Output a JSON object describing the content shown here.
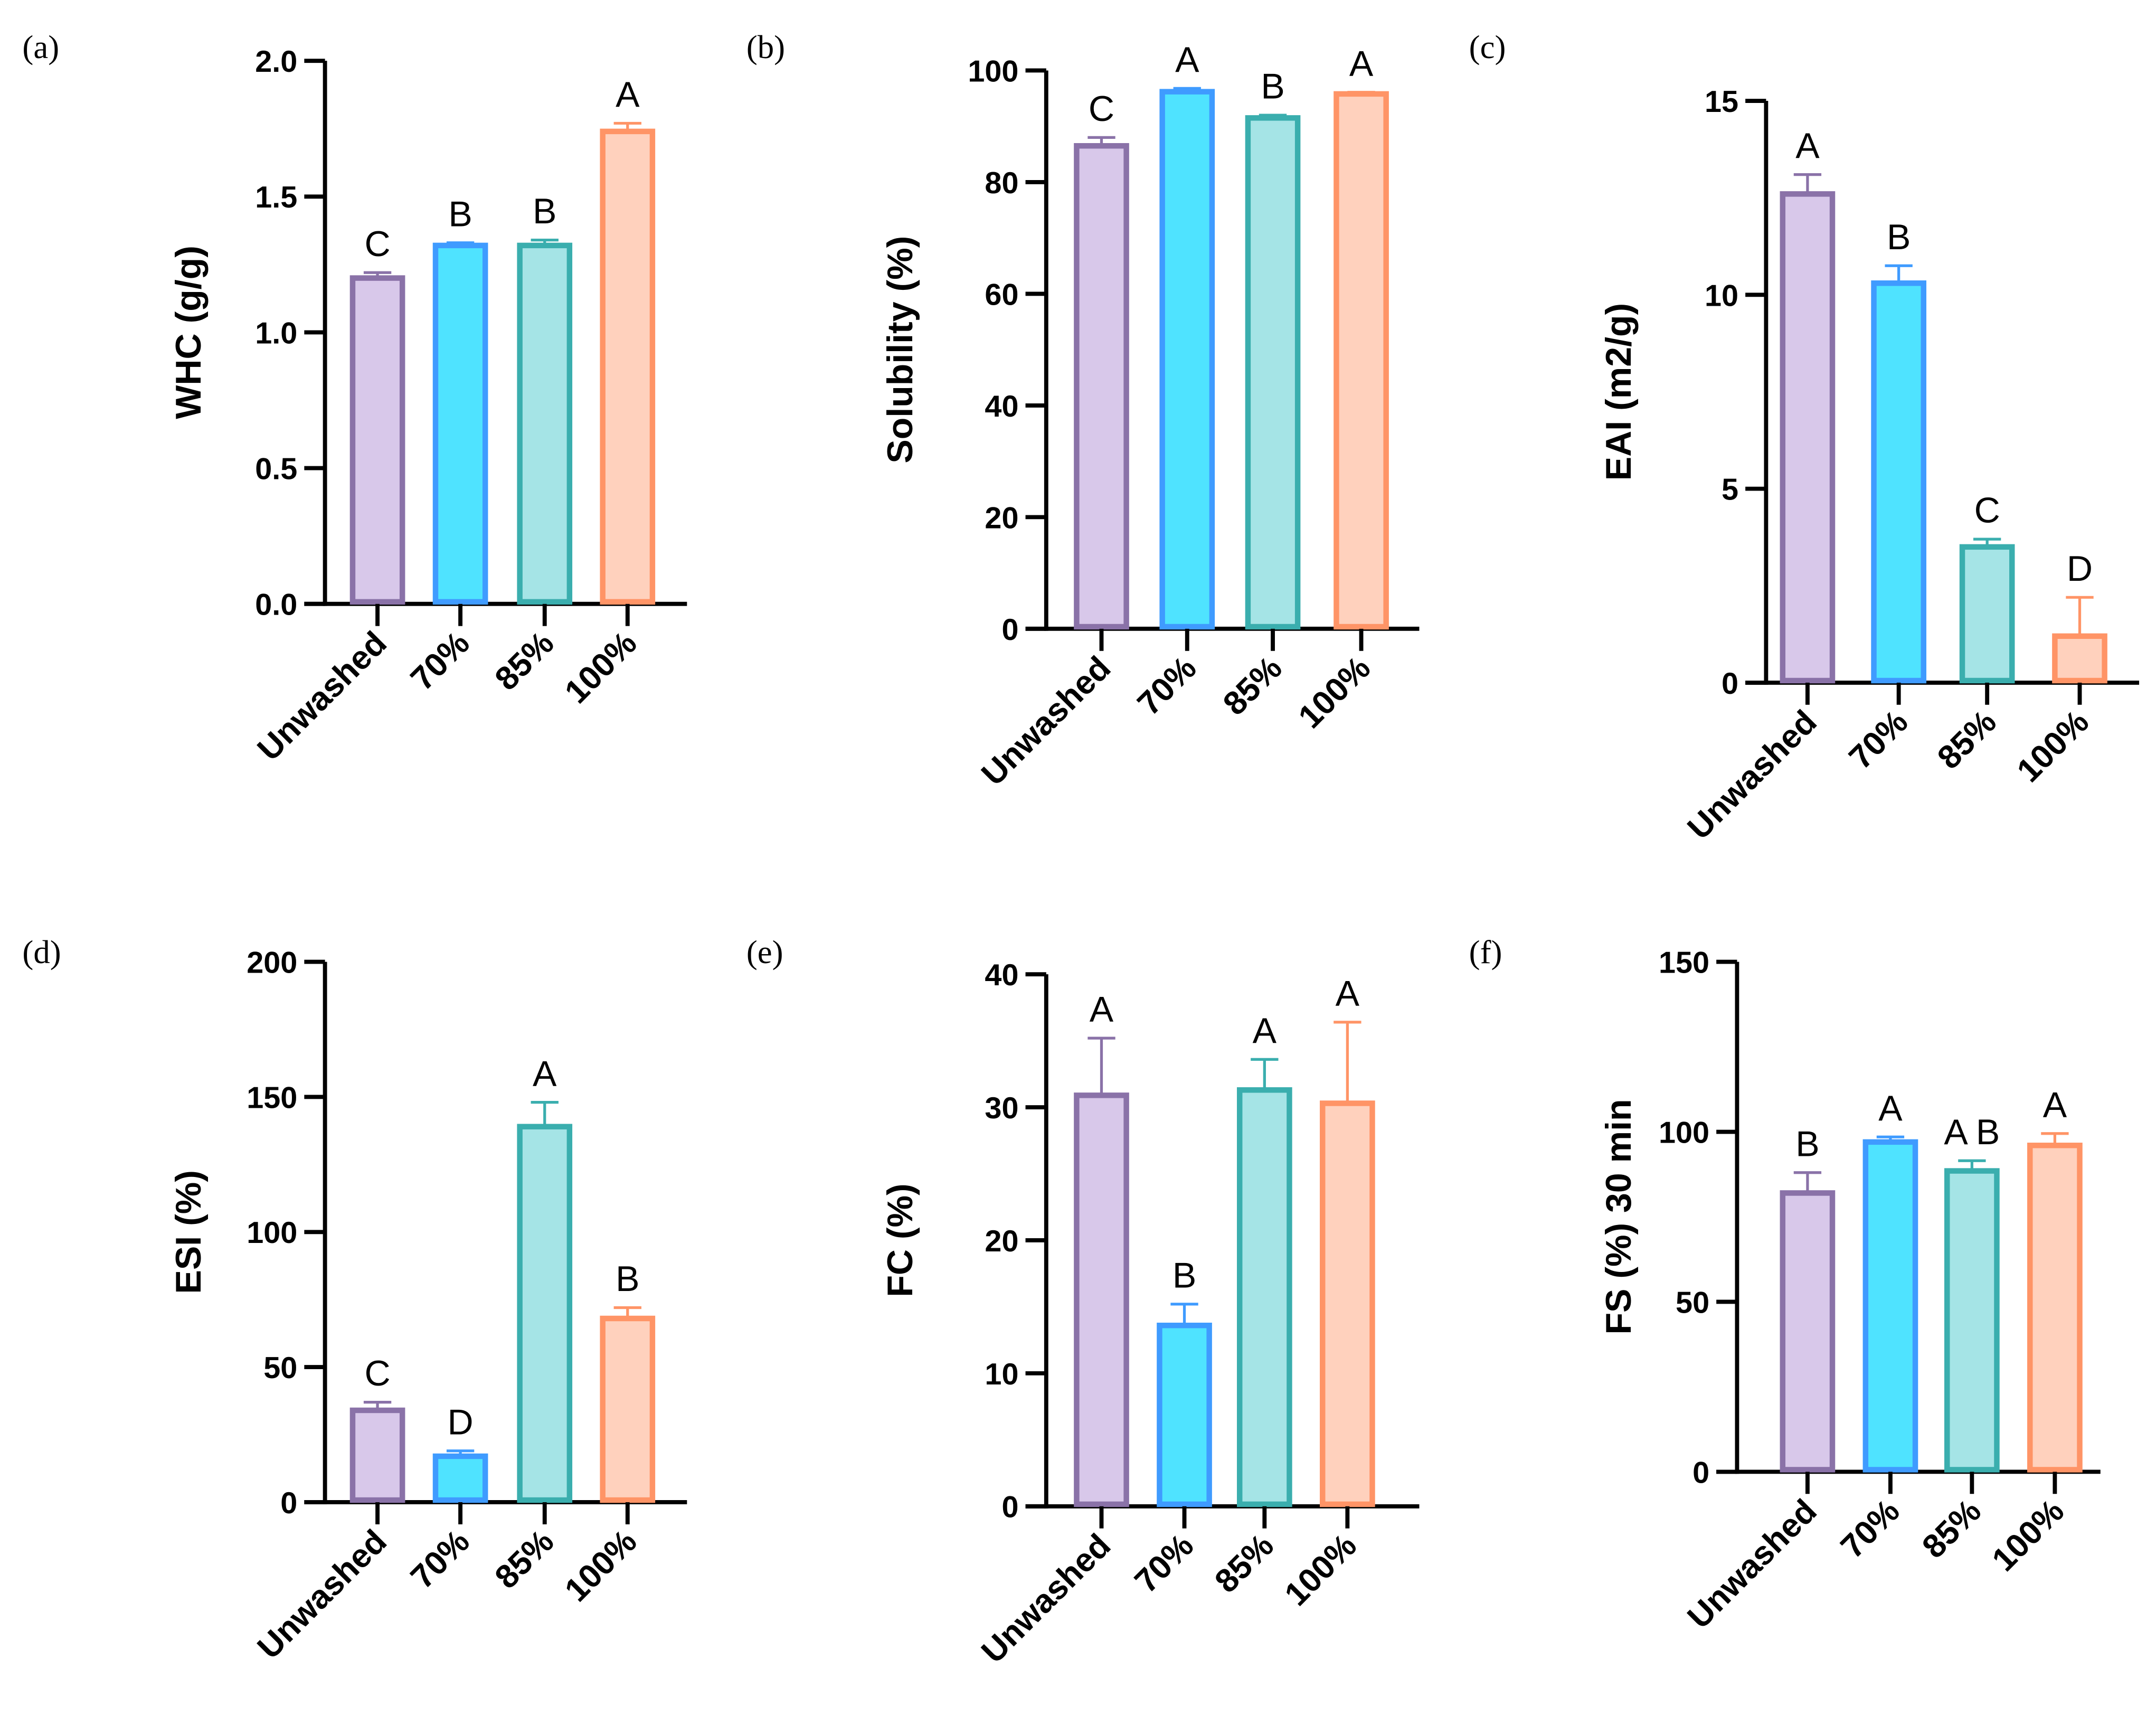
{
  "chart_data": [
    {
      "panel": "(a)",
      "type": "bar",
      "ylabel": "WHC (g/g)",
      "ylim": [
        0,
        2.0
      ],
      "yticks": [
        "0.0",
        "0.5",
        "1.0",
        "1.5",
        "2.0"
      ],
      "ytick_values": [
        0,
        0.5,
        1,
        1.5,
        2
      ],
      "categories": [
        "Unwashed",
        "70%",
        "85%",
        "100%"
      ],
      "values": [
        1.2,
        1.32,
        1.32,
        1.74
      ],
      "errors": [
        0.02,
        0.01,
        0.02,
        0.03
      ],
      "letters": [
        "C",
        "B",
        "B",
        "A"
      ]
    },
    {
      "panel": "(b)",
      "type": "bar",
      "ylabel": "Solubility (%)",
      "ylim": [
        0,
        100
      ],
      "yticks": [
        "0",
        "20",
        "40",
        "60",
        "80",
        "100"
      ],
      "ytick_values": [
        0,
        20,
        40,
        60,
        80,
        100
      ],
      "categories": [
        "Unwashed",
        "70%",
        "85%",
        "100%"
      ],
      "values": [
        86.5,
        96.2,
        91.5,
        95.8
      ],
      "errors": [
        1.5,
        0.6,
        0.5,
        0.3
      ],
      "letters": [
        "C",
        "A",
        "B",
        "A"
      ]
    },
    {
      "panel": "(c)",
      "type": "bar",
      "ylabel": "EAI (m2/g)",
      "ylim": [
        0,
        15
      ],
      "yticks": [
        "0",
        "5",
        "10",
        "15"
      ],
      "ytick_values": [
        0,
        5,
        10,
        15
      ],
      "categories": [
        "Unwashed",
        "70%",
        "85%",
        "100%"
      ],
      "values": [
        12.6,
        10.3,
        3.5,
        1.2
      ],
      "errors": [
        0.5,
        0.45,
        0.2,
        1.0
      ],
      "letters": [
        "A",
        "B",
        "C",
        "D"
      ]
    },
    {
      "panel": "(d)",
      "type": "bar",
      "ylabel": "ESI (%)",
      "ylim": [
        0,
        200
      ],
      "yticks": [
        "0",
        "50",
        "100",
        "150",
        "200"
      ],
      "ytick_values": [
        0,
        50,
        100,
        150,
        200
      ],
      "categories": [
        "Unwashed",
        "70%",
        "85%",
        "100%"
      ],
      "values": [
        34,
        17,
        139,
        68
      ],
      "errors": [
        3,
        2,
        9,
        4
      ],
      "letters": [
        "C",
        "D",
        "A",
        "B"
      ]
    },
    {
      "panel": "(e)",
      "type": "bar",
      "ylabel": "FC (%)",
      "ylim": [
        0,
        40
      ],
      "yticks": [
        "0",
        "10",
        "20",
        "30",
        "40"
      ],
      "ytick_values": [
        0,
        10,
        20,
        30,
        40
      ],
      "categories": [
        "Unwashed",
        "70%",
        "85%",
        "100%"
      ],
      "values": [
        30.9,
        13.6,
        31.3,
        30.3
      ],
      "errors": [
        4.3,
        1.6,
        2.3,
        6.1
      ],
      "letters": [
        "A",
        "B",
        "A",
        "A"
      ]
    },
    {
      "panel": "(f)",
      "type": "bar",
      "ylabel": "FS (%) 30 min",
      "ylim": [
        0,
        150
      ],
      "yticks": [
        "0",
        "50",
        "100",
        "150"
      ],
      "ytick_values": [
        0,
        50,
        100,
        150
      ],
      "categories": [
        "Unwashed",
        "70%",
        "85%",
        "100%"
      ],
      "values": [
        82,
        97,
        88.5,
        96
      ],
      "errors": [
        6,
        1.5,
        3,
        3.5
      ],
      "letters": [
        "B",
        "A",
        "A B",
        "A"
      ]
    }
  ],
  "colors": {
    "fills": [
      "#d8c8ea",
      "#4fe3ff",
      "#a5e4e6",
      "#ffd1bd"
    ],
    "strokes": [
      "#8a72a8",
      "#3f9bff",
      "#3aaeae",
      "#ff9466"
    ]
  }
}
